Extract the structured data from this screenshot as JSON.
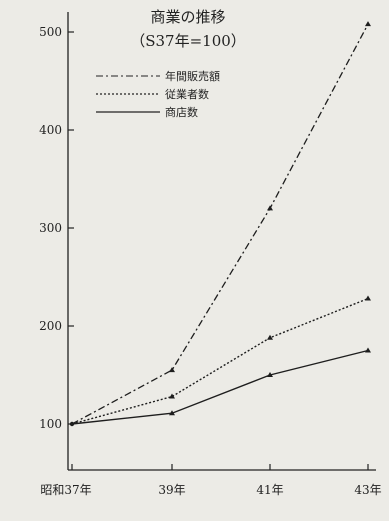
{
  "chart_data": {
    "type": "line",
    "title": "商業の推移",
    "subtitle": "（S37年=100）",
    "categories": [
      "昭和37年",
      "39年",
      "41年",
      "43年"
    ],
    "y_ticks": [
      "100",
      "200",
      "300",
      "400",
      "500"
    ],
    "ylim": [
      50,
      520
    ],
    "grid": false,
    "legend_position": "top-left",
    "series": [
      {
        "name": "年間販売額",
        "values": [
          100,
          155,
          320,
          508
        ],
        "style": "dash-dot"
      },
      {
        "name": "従業者数",
        "values": [
          100,
          128,
          188,
          228
        ],
        "style": "dotted"
      },
      {
        "name": "商店数",
        "values": [
          100,
          111,
          150,
          175
        ],
        "style": "solid"
      }
    ]
  }
}
